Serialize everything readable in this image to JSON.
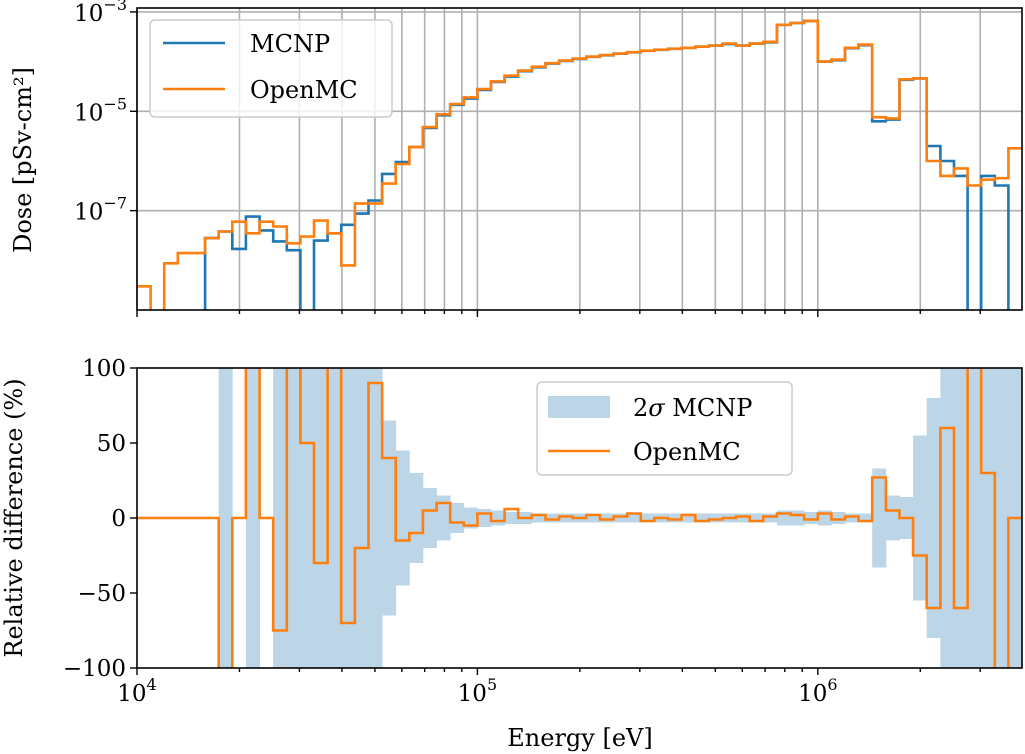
{
  "colors": {
    "mcnp": "#1f77b4",
    "openmc": "#ff7f0e",
    "band": "#bcd6e8",
    "grid": "#b0b0b0"
  },
  "chart_data": [
    {
      "type": "line",
      "step": true,
      "title": "",
      "xlabel": "",
      "ylabel": "Dose [pSv-cm²]",
      "xscale": "log",
      "yscale": "log",
      "xlim": [
        10000,
        3980000
      ],
      "ylim": [
        1e-09,
        0.0012
      ],
      "grid": true,
      "legend": "top-left",
      "yticks": [
        {
          "base": "10",
          "exp": "−3",
          "value": 0.001
        },
        {
          "base": "10",
          "exp": "−5",
          "value": 1e-05
        },
        {
          "base": "10",
          "exp": "−7",
          "value": 1e-07
        }
      ],
      "energy_edges": [
        10000.0,
        10960.0,
        12020.0,
        13180.0,
        14450.0,
        15850.0,
        17380.0,
        19050.0,
        20890.0,
        22910.0,
        25120.0,
        27540.0,
        30200.0,
        33110.0,
        36310.0,
        39810.0,
        43650.0,
        47860.0,
        52480.0,
        57540.0,
        63100.0,
        69180.0,
        75860.0,
        83180.0,
        91200.0,
        100000.0,
        109600.0,
        120200.0,
        131800.0,
        144500.0,
        158500.0,
        173800.0,
        190500.0,
        208900.0,
        229100.0,
        251200.0,
        275400.0,
        302000.0,
        331100.0,
        363100.0,
        398100.0,
        436500.0,
        478600.0,
        524800.0,
        575400.0,
        631000.0,
        691800.0,
        758600.0,
        831800.0,
        912000.0,
        1000000.0,
        1096000.0,
        1202000.0,
        1318000.0,
        1445000.0,
        1585000.0,
        1738000.0,
        1905000.0,
        2089000.0,
        2291000.0,
        2512000.0,
        2754000.0,
        3020000.0,
        3311000.0,
        3631000.0,
        3981000.0
      ],
      "series": [
        {
          "name": "MCNP",
          "values": [
            null,
            null,
            null,
            null,
            null,
            2.8e-08,
            3.8e-08,
            1.7e-08,
            7.6e-08,
            4e-08,
            2.4e-08,
            1.6e-08,
            null,
            2.5e-08,
            3.5e-08,
            5.2e-08,
            8.7e-08,
            1.6e-07,
            5.5e-07,
            9.5e-07,
            1.9e-06,
            4.6e-06,
            8.3e-06,
            1.35e-05,
            1.8e-05,
            2.7e-05,
            3.9e-05,
            5e-05,
            6.4e-05,
            7.7e-05,
            9.1e-05,
            0.000103,
            0.000113,
            0.000125,
            0.000134,
            0.000144,
            0.000154,
            0.000165,
            0.000173,
            0.000181,
            0.00019,
            0.0002,
            0.00021,
            0.000225,
            0.00021,
            0.00023,
            0.000245,
            0.00055,
            0.0006,
            0.00066,
            0.0001,
            0.000107,
            0.000186,
            0.000214,
            6.3e-06,
            6.8e-06,
            4.3e-05,
            4.6e-05,
            2e-06,
            1e-06,
            5e-07,
            null,
            5e-07,
            3.2e-07,
            null
          ]
        },
        {
          "name": "OpenMC",
          "values": [
            3e-09,
            null,
            8.7e-09,
            1.4e-08,
            1.4e-08,
            2.8e-08,
            3.8e-08,
            6e-08,
            3.5e-08,
            6e-08,
            4.8e-08,
            2.2e-08,
            3e-08,
            6.3e-08,
            3.5e-08,
            7.9e-09,
            1.4e-07,
            1.4e-07,
            3.5e-07,
            8.7e-07,
            1.9e-06,
            4.8e-06,
            8.7e-06,
            1.4e-05,
            1.9e-05,
            2.8e-05,
            4e-05,
            5.2e-05,
            6.6e-05,
            7.9e-05,
            9.3e-05,
            0.000105,
            0.000115,
            0.000126,
            0.000135,
            0.000145,
            0.000155,
            0.000166,
            0.000174,
            0.000182,
            0.00019,
            0.0002,
            0.00021,
            0.00023,
            0.00021,
            0.00023,
            0.00025,
            0.00055,
            0.0006,
            0.00066,
            0.0001,
            0.00011,
            0.00019,
            0.00022,
            7.6e-06,
            7.2e-06,
            4.4e-05,
            4.6e-05,
            1e-06,
            5e-07,
            7.1e-07,
            3.2e-07,
            4.2e-07,
            4.5e-07,
            1.8e-06
          ]
        }
      ]
    },
    {
      "type": "line",
      "step": true,
      "title": "",
      "xlabel": "Energy [eV]",
      "ylabel": "Relative difference (%)",
      "xscale": "log",
      "xlim": [
        10000,
        3980000
      ],
      "ylim": [
        -100,
        100
      ],
      "grid": false,
      "legend": "upper-center-right",
      "xticks": [
        {
          "base": "10",
          "exp": "4",
          "value": 10000.0
        },
        {
          "base": "10",
          "exp": "5",
          "value": 100000.0
        },
        {
          "base": "10",
          "exp": "6",
          "value": 1000000.0
        }
      ],
      "yticks": [
        {
          "label": "100",
          "value": 100
        },
        {
          "label": "50",
          "value": 50
        },
        {
          "label": "0",
          "value": 0
        },
        {
          "label": "−50",
          "value": -50
        },
        {
          "label": "−100",
          "value": -100
        }
      ],
      "band": {
        "name": "2σ MCNP",
        "name_prefix": "2",
        "name_sigma": "σ",
        "name_suffix": " MCNP",
        "half_width": [
          0,
          0,
          0,
          0,
          0,
          0,
          150,
          0,
          150,
          0,
          150,
          150,
          150,
          150,
          150,
          150,
          150,
          100,
          65,
          45,
          30,
          20,
          15,
          10,
          7,
          6,
          5,
          4,
          4,
          3,
          3,
          3,
          3,
          3,
          3,
          3,
          3,
          3,
          3,
          3,
          3,
          3,
          3,
          3,
          3,
          3,
          3,
          5,
          5,
          4,
          5,
          4,
          3,
          3,
          33,
          15,
          14,
          55,
          80,
          150,
          150,
          150,
          150,
          150,
          150
        ]
      },
      "series": [
        {
          "name": "OpenMC",
          "values": [
            0,
            0,
            0,
            0,
            0,
            0,
            -150,
            0,
            150,
            0,
            -75,
            150,
            50,
            -30,
            150,
            -70,
            -20,
            90,
            40,
            -15,
            -10,
            5,
            10,
            -3,
            -5,
            3,
            -2,
            6,
            0,
            2,
            -1,
            1,
            0,
            2,
            -1,
            1,
            3,
            -2,
            0,
            -1,
            2,
            -2,
            -1,
            0,
            1,
            -2,
            1,
            3,
            2,
            -1,
            3,
            -1,
            1,
            -2,
            27,
            5,
            0,
            -25,
            -60,
            60,
            -60,
            150,
            30,
            -150,
            0
          ]
        }
      ]
    }
  ]
}
